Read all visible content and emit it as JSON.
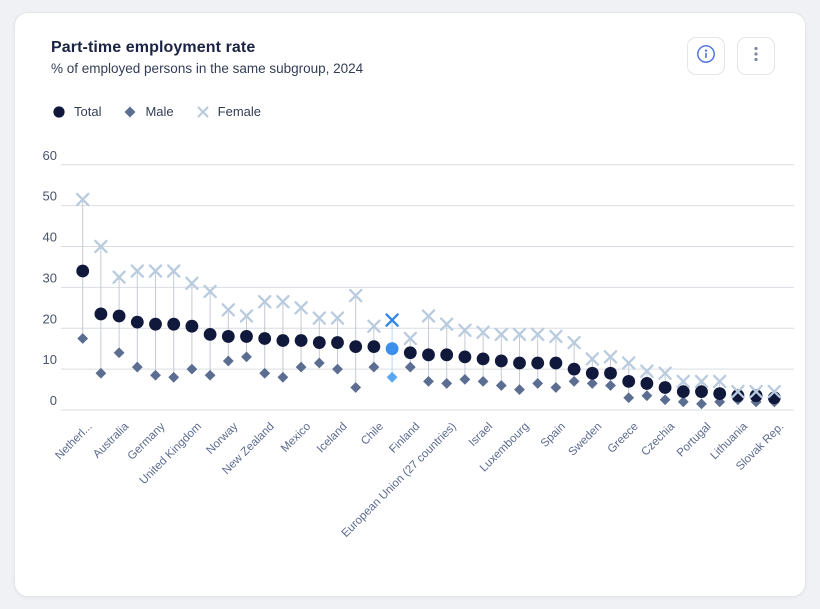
{
  "header": {
    "title": "Part-time employment rate",
    "subtitle": "% of employed persons in the same subgroup, 2024"
  },
  "toolbar": {
    "buttons": [
      {
        "icon": "info-circle-icon",
        "color": "#4a6ee0"
      },
      {
        "icon": "kebab-menu-icon",
        "color": "#7d88a1"
      }
    ]
  },
  "chart_data": {
    "type": "scatter",
    "title": "Part-time employment rate",
    "subtitle": "% of employed persons in the same subgroup, 2024",
    "legend_position": "top-left",
    "grid": true,
    "ylim": [
      0,
      60
    ],
    "yticks": [
      0,
      10,
      20,
      30,
      40,
      50,
      60
    ],
    "xlabel": "",
    "ylabel": "",
    "label_note": "country labels shown for every second point, rotated 45 degrees",
    "series": [
      {
        "name": "Total",
        "marker": "circle",
        "color": "#10193c"
      },
      {
        "name": "Male",
        "marker": "diamond",
        "color": "#5b6e91"
      },
      {
        "name": "Female",
        "marker": "x",
        "color": "#b9cbdf"
      }
    ],
    "connector_color": "#c5cad4",
    "grid_color": "#d9dde3",
    "tick_color": "#49536c",
    "label_color": "#5c6a8e",
    "highlight": {
      "index": 17,
      "circle": "#3d8fec",
      "diamond": "#58a7f3",
      "x": "#2f86e9",
      "line": "#b4d8f8"
    },
    "points": [
      {
        "label": "Netherl...",
        "total": 34,
        "male": 17.5,
        "female": 51.5
      },
      {
        "label": "",
        "total": 23.5,
        "male": 9,
        "female": 40
      },
      {
        "label": "Australia",
        "total": 23,
        "male": 14,
        "female": 32.5
      },
      {
        "label": "",
        "total": 21.5,
        "male": 10.5,
        "female": 34
      },
      {
        "label": "Germany",
        "total": 21,
        "male": 8.5,
        "female": 34
      },
      {
        "label": "",
        "total": 21,
        "male": 8,
        "female": 34
      },
      {
        "label": "United Kingdom",
        "total": 20.5,
        "male": 10,
        "female": 31
      },
      {
        "label": "",
        "total": 18.5,
        "male": 8.5,
        "female": 29
      },
      {
        "label": "Norway",
        "total": 18,
        "male": 12,
        "female": 24.5
      },
      {
        "label": "",
        "total": 18,
        "male": 13,
        "female": 23
      },
      {
        "label": "New Zealand",
        "total": 17.5,
        "male": 9,
        "female": 26.5
      },
      {
        "label": "",
        "total": 17,
        "male": 8,
        "female": 26.5
      },
      {
        "label": "Mexico",
        "total": 17,
        "male": 10.5,
        "female": 25
      },
      {
        "label": "",
        "total": 16.5,
        "male": 11.5,
        "female": 22.5
      },
      {
        "label": "Iceland",
        "total": 16.5,
        "male": 10,
        "female": 22.5
      },
      {
        "label": "",
        "total": 15.5,
        "male": 5.5,
        "female": 28
      },
      {
        "label": "Chile",
        "total": 15.5,
        "male": 10.5,
        "female": 20.5
      },
      {
        "label": "",
        "total": 15,
        "male": 8,
        "female": 22
      },
      {
        "label": "Finland",
        "total": 14,
        "male": 10.5,
        "female": 17.5
      },
      {
        "label": "",
        "total": 13.5,
        "male": 7,
        "female": 23
      },
      {
        "label": "European Union (27 countries)",
        "total": 13.5,
        "male": 6.5,
        "female": 21
      },
      {
        "label": "",
        "total": 13,
        "male": 7.5,
        "female": 19.5
      },
      {
        "label": "Israel",
        "total": 12.5,
        "male": 7,
        "female": 19
      },
      {
        "label": "",
        "total": 12,
        "male": 6,
        "female": 18.5
      },
      {
        "label": "Luxembourg",
        "total": 11.5,
        "male": 5,
        "female": 18.5
      },
      {
        "label": "",
        "total": 11.5,
        "male": 6.5,
        "female": 18.5
      },
      {
        "label": "Spain",
        "total": 11.5,
        "male": 5.5,
        "female": 18
      },
      {
        "label": "",
        "total": 10,
        "male": 7,
        "female": 16.5
      },
      {
        "label": "Sweden",
        "total": 9,
        "male": 6.5,
        "female": 12.5
      },
      {
        "label": "",
        "total": 9,
        "male": 6,
        "female": 13
      },
      {
        "label": "Greece",
        "total": 7,
        "male": 3,
        "female": 11.5
      },
      {
        "label": "",
        "total": 6.5,
        "male": 3.5,
        "female": 9.5
      },
      {
        "label": "Czechia",
        "total": 5.5,
        "male": 2.5,
        "female": 9
      },
      {
        "label": "",
        "total": 4.5,
        "male": 2,
        "female": 7
      },
      {
        "label": "Portugal",
        "total": 4.5,
        "male": 1.5,
        "female": 7
      },
      {
        "label": "",
        "total": 4,
        "male": 2,
        "female": 7
      },
      {
        "label": "Lithuania",
        "total": 3.5,
        "male": 2.5,
        "female": 4.5
      },
      {
        "label": "",
        "total": 3.5,
        "male": 2,
        "female": 4.5
      },
      {
        "label": "Slovak Rep.",
        "total": 3,
        "male": 2,
        "female": 4.5
      }
    ]
  }
}
